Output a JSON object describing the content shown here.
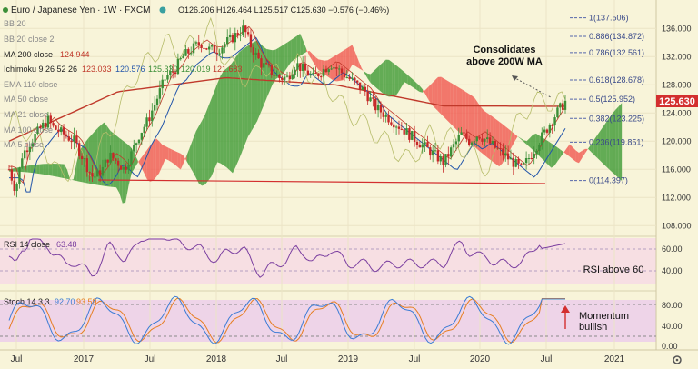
{
  "header": {
    "symbol": "Euro / Japanese Yen · 1W · FXCM",
    "ohlc": "O126.206 H126.464 L125.517 C125.630 −0.576 (−0.46%)"
  },
  "legend": {
    "bb20": "BB 20",
    "bb20close": "BB 20 close 2",
    "ma200": "MA 200 close",
    "ma200_val": "124.944",
    "ichimoku": "Ichimoku 9 26 52 26",
    "ichi_vals": [
      "123.033",
      "120.576",
      "125.330",
      "120.019",
      "121.683"
    ],
    "ema110": "EMA 110 close",
    "ma50": "MA 50 close",
    "ma21": "MA 21 close",
    "ma100": "MA 100 close",
    "ma5": "MA 5 close"
  },
  "annotations": {
    "consolidates": [
      "Consolidates",
      "above 200W MA"
    ],
    "rsi_note": "RSI above 60",
    "momentum": [
      "Momentum",
      "bullish"
    ]
  },
  "price_axis": {
    "ticks": [
      "136.000",
      "132.000",
      "128.000",
      "124.000",
      "120.000",
      "116.000",
      "112.000",
      "108.000"
    ],
    "current": "125.630"
  },
  "fib_levels": [
    {
      "label": "1(137.506)",
      "value": 137.506
    },
    {
      "label": "0.886(134.872)",
      "value": 134.872
    },
    {
      "label": "0.786(132.561)",
      "value": 132.561
    },
    {
      "label": "0.618(128.678)",
      "value": 128.678
    },
    {
      "label": "0.5(125.952)",
      "value": 125.952
    },
    {
      "label": "0.382(123.225)",
      "value": 123.225
    },
    {
      "label": "0.236(119.851)",
      "value": 119.851
    },
    {
      "label": "0(114.397)",
      "value": 114.397
    }
  ],
  "rsi_panel": {
    "label": "RSI 14 close",
    "value": "63.48",
    "ticks": [
      "60.00",
      "40.00"
    ]
  },
  "stoch_panel": {
    "label": "Stoch 14 3 3",
    "k": "92.70",
    "d": "93.59",
    "ticks": [
      "80.00",
      "40.00",
      "0.00"
    ]
  },
  "time_axis": [
    "Jul",
    "2017",
    "Jul",
    "2018",
    "Jul",
    "2019",
    "Jul",
    "2020",
    "Jul",
    "2021"
  ],
  "colors": {
    "bg": "#f8f4d9",
    "cloud_bear": "#f0574f",
    "cloud_bull": "#3d9a33",
    "ma200": "#c0392b",
    "up": "#3c8f38",
    "down": "#c62828",
    "rsi": "#7b3fa0",
    "stoch_k": "#3a7bd5",
    "stoch_d": "#e67e22",
    "price_tag": "#d32f2f"
  },
  "chart_data": {
    "type": "candlestick",
    "title": "Euro / Japanese Yen · 1W · FXCM",
    "price_range": [
      107,
      139
    ],
    "x": [
      "2016-07",
      "2017-01",
      "2017-07",
      "2018-01",
      "2018-07",
      "2019-01",
      "2019-07",
      "2020-01",
      "2020-07",
      "2021-01"
    ],
    "close_path": [
      [
        0,
        116
      ],
      [
        0.3,
        113
      ],
      [
        0.6,
        118
      ],
      [
        1,
        120
      ],
      [
        1.5,
        122
      ],
      [
        1.8,
        123
      ],
      [
        2,
        122
      ],
      [
        2.5,
        121
      ],
      [
        3,
        120
      ],
      [
        3.5,
        117
      ],
      [
        3.8,
        115
      ],
      [
        4,
        115
      ],
      [
        4.3,
        116
      ],
      [
        4.6,
        118
      ],
      [
        5,
        117
      ],
      [
        5.3,
        116
      ],
      [
        5.6,
        118
      ],
      [
        6,
        121
      ],
      [
        6.4,
        123
      ],
      [
        6.8,
        126
      ],
      [
        7.2,
        129
      ],
      [
        7.6,
        130
      ],
      [
        8,
        132
      ],
      [
        8.4,
        133
      ],
      [
        8.8,
        134
      ],
      [
        9.2,
        133
      ],
      [
        9.6,
        133
      ],
      [
        10,
        134
      ],
      [
        10.4,
        135
      ],
      [
        10.8,
        136
      ],
      [
        11.2,
        133
      ],
      [
        11.6,
        131
      ],
      [
        12,
        130
      ],
      [
        12.4,
        129
      ],
      [
        12.8,
        129
      ],
      [
        13.2,
        131
      ],
      [
        13.6,
        130
      ],
      [
        14,
        129
      ],
      [
        14.4,
        130
      ],
      [
        14.8,
        131
      ],
      [
        15.2,
        130
      ],
      [
        15.6,
        129
      ],
      [
        16,
        128
      ],
      [
        16.4,
        127
      ],
      [
        16.8,
        125
      ],
      [
        17.2,
        124
      ],
      [
        17.6,
        123
      ],
      [
        18,
        122
      ],
      [
        18.4,
        121
      ],
      [
        18.8,
        120
      ],
      [
        19.2,
        119
      ],
      [
        19.6,
        118
      ],
      [
        20,
        117
      ],
      [
        20.4,
        119
      ],
      [
        20.8,
        121
      ],
      [
        21.2,
        120
      ],
      [
        21.6,
        121
      ],
      [
        22,
        120
      ],
      [
        22.4,
        119
      ],
      [
        22.8,
        118
      ],
      [
        23.2,
        117
      ],
      [
        23.6,
        116
      ],
      [
        24,
        118
      ],
      [
        24.4,
        120
      ],
      [
        24.8,
        122
      ],
      [
        25.2,
        124
      ],
      [
        25.6,
        125.6
      ]
    ],
    "ma200": [
      [
        0,
        120
      ],
      [
        5,
        127
      ],
      [
        10,
        129
      ],
      [
        15,
        128
      ],
      [
        20,
        125
      ],
      [
        25,
        124.944
      ]
    ],
    "rsi": {
      "latest": 63.48,
      "range": [
        20,
        70
      ]
    },
    "stochastic": {
      "k": 92.7,
      "d": 93.59,
      "range": [
        0,
        100
      ]
    }
  }
}
